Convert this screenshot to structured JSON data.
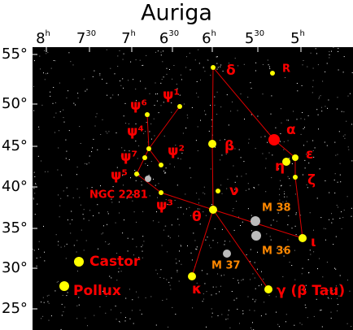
{
  "title": "Auriga",
  "ra_labels": [
    {
      "main": "8",
      "sup": "h"
    },
    {
      "main": "7",
      "sup": "30"
    },
    {
      "main": "7",
      "sup": "h"
    },
    {
      "main": "6",
      "sup": "30"
    },
    {
      "main": "6",
      "sup": "h"
    },
    {
      "main": "5",
      "sup": "30"
    },
    {
      "main": "5",
      "sup": "h"
    }
  ],
  "dec_labels": [
    "55°",
    "50°",
    "45°",
    "40°",
    "35°",
    "30°",
    "25°"
  ],
  "objects": [
    {
      "label": "δ"
    },
    {
      "label": "R"
    },
    {
      "label": "α"
    },
    {
      "label": "ε"
    },
    {
      "label": "η"
    },
    {
      "label": "ζ"
    },
    {
      "label": "β"
    },
    {
      "label": "ν"
    },
    {
      "label": "θ"
    },
    {
      "label": "ι"
    },
    {
      "label": "κ"
    },
    {
      "label": "γ (β Tau)"
    },
    {
      "label": "ψ¹"
    },
    {
      "label": "ψ⁶"
    },
    {
      "label": "ψ⁴"
    },
    {
      "label": "ψ⁷"
    },
    {
      "label": "ψ²"
    },
    {
      "label": "ψ⁵"
    },
    {
      "label": "ψ³"
    },
    {
      "label": "Castor"
    },
    {
      "label": "Pollux"
    },
    {
      "label": "NGC 2281"
    },
    {
      "label": "M 38"
    },
    {
      "label": "M 36"
    },
    {
      "label": "M 37"
    }
  ]
}
